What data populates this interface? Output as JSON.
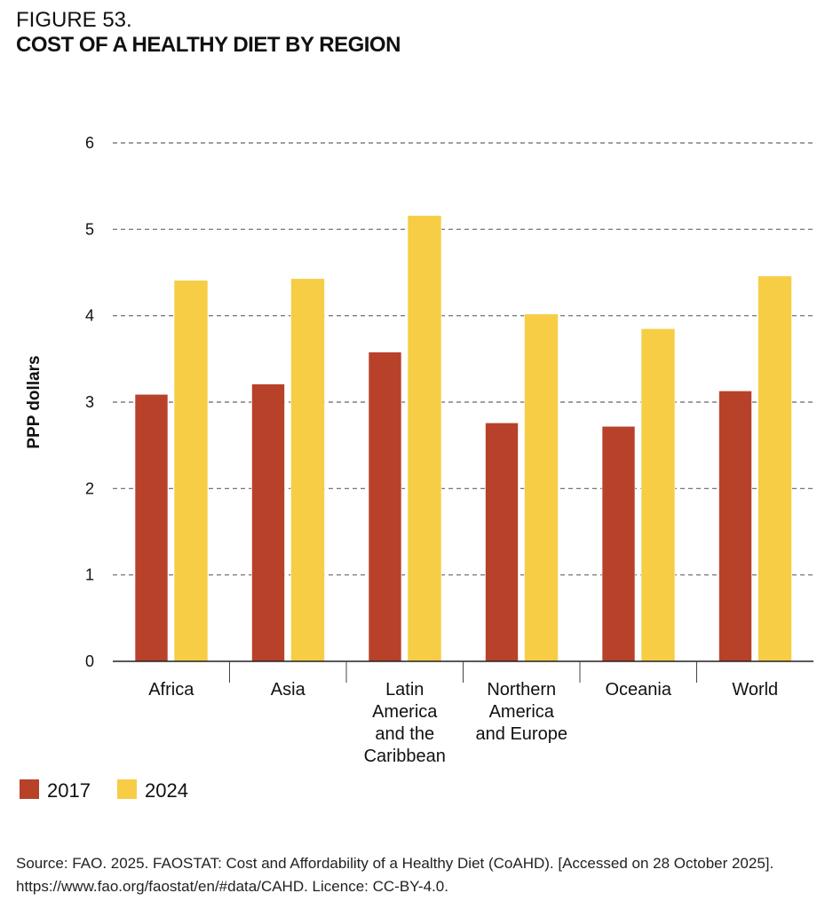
{
  "figure_label": "FIGURE 53.",
  "title": "COST OF A HEALTHY DIET BY REGION",
  "source": "Source: FAO. 2025. FAOSTAT: Cost and Affordability of a Healthy Diet (CoAHD). [Accessed on 28 October 2025]. https://www.fao.org/faostat/en/#data/CAHD. Licence: CC-BY-4.0.",
  "chart_data": {
    "type": "bar",
    "title": "COST OF A HEALTHY DIET BY REGION",
    "ylabel": "PPP dollars",
    "xlabel": "",
    "ylim": [
      0,
      6
    ],
    "yticks": [
      0,
      1,
      2,
      3,
      4,
      5,
      6
    ],
    "grid": true,
    "legend_placement": "bottom-left",
    "categories": [
      [
        "Africa"
      ],
      [
        "Asia"
      ],
      [
        "Latin",
        "America",
        "and the",
        "Caribbean"
      ],
      [
        "Northern",
        "America",
        "and Europe"
      ],
      [
        "Oceania"
      ],
      [
        "World"
      ]
    ],
    "series": [
      {
        "name": "2017",
        "color": "#B8412A",
        "values": [
          3.09,
          3.21,
          3.58,
          2.76,
          2.72,
          3.13
        ]
      },
      {
        "name": "2024",
        "color": "#F6CD45",
        "values": [
          4.41,
          4.43,
          5.16,
          4.02,
          3.85,
          4.46
        ]
      }
    ]
  }
}
